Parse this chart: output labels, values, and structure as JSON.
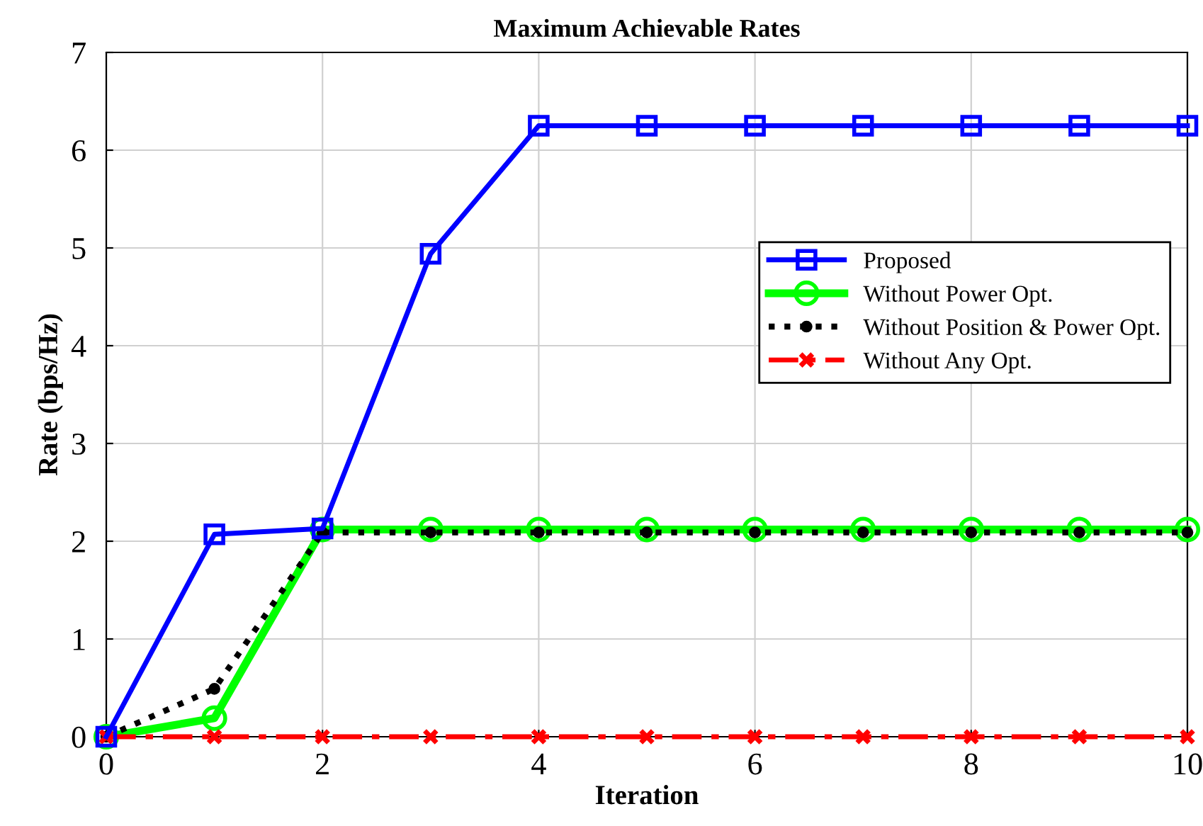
{
  "chart_data": {
    "type": "line",
    "title": "Maximum Achievable Rates",
    "xlabel": "Iteration",
    "ylabel": "Rate (bps/Hz)",
    "x": [
      0,
      1,
      2,
      3,
      4,
      5,
      6,
      7,
      8,
      9,
      10
    ],
    "series": [
      {
        "name": "Proposed",
        "color": "#0000ff",
        "marker": "square",
        "line_style": "solid",
        "values": [
          0,
          2.07,
          2.13,
          4.94,
          6.25,
          6.25,
          6.25,
          6.25,
          6.25,
          6.25,
          6.25
        ]
      },
      {
        "name": "Without Power Opt.",
        "color": "#00ff00",
        "marker": "circle",
        "line_style": "solid",
        "values": [
          0,
          0.19,
          2.12,
          2.12,
          2.12,
          2.12,
          2.12,
          2.12,
          2.12,
          2.12,
          2.12
        ]
      },
      {
        "name": "Without Position & Power Opt.",
        "color": "#000000",
        "marker": "circle",
        "line_style": "dotted",
        "values": [
          0,
          0.49,
          2.09,
          2.09,
          2.09,
          2.09,
          2.09,
          2.09,
          2.09,
          2.09,
          2.09
        ]
      },
      {
        "name": "Without Any Opt.",
        "color": "#ff0000",
        "marker": "cross",
        "line_style": "dashed",
        "values": [
          0,
          0,
          0,
          0,
          0,
          0,
          0,
          0,
          0,
          0,
          0
        ]
      }
    ],
    "xlim": [
      0,
      10
    ],
    "ylim": [
      0,
      7
    ],
    "xticks": [
      0,
      2,
      4,
      6,
      8,
      10
    ],
    "yticks": [
      0,
      1,
      2,
      3,
      4,
      5,
      6,
      7
    ],
    "grid": true,
    "legend": "right"
  }
}
